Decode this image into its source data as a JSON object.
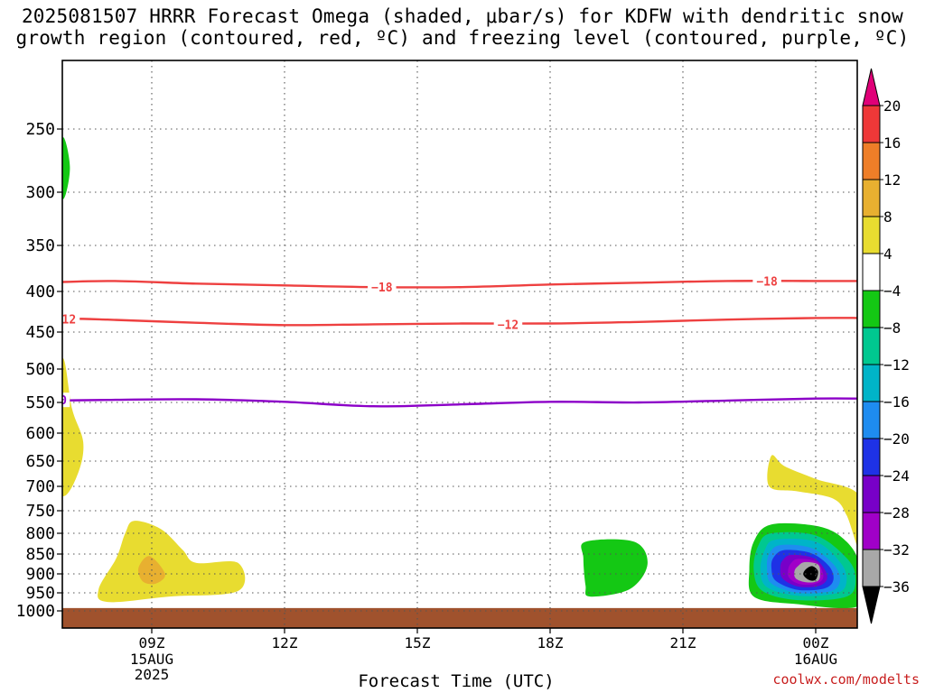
{
  "title": "2025081507 HRRR Forecast Omega (shaded, μbar/s) for KDFW with dendritic snow\ngrowth region (contoured, red, ºC) and freezing level (contoured, purple, ºC)",
  "credit": "coolwx.com/modelts",
  "chart_data": {
    "type": "time-height contour",
    "xlabel": "Forecast Time (UTC)",
    "ylabel": "",
    "x_range_hours": [
      6.0,
      24.95
    ],
    "y_range_hpa": [
      1025,
      175
    ],
    "y_ticks": [
      250,
      300,
      350,
      400,
      450,
      500,
      550,
      600,
      650,
      700,
      750,
      800,
      850,
      900,
      950,
      1000
    ],
    "y_scale": "log-pressure",
    "x_ticks": [
      {
        "hour": 9,
        "label": "09Z",
        "sub": [
          "15AUG",
          "2025"
        ]
      },
      {
        "hour": 12,
        "label": "12Z",
        "sub": []
      },
      {
        "hour": 15,
        "label": "15Z",
        "sub": []
      },
      {
        "hour": 18,
        "label": "18Z",
        "sub": []
      },
      {
        "hour": 21,
        "label": "21Z",
        "sub": []
      },
      {
        "hour": 24,
        "label": "00Z",
        "sub": [
          "16AUG"
        ]
      }
    ],
    "grid": true,
    "colorbar": {
      "labels": [
        "20",
        "16",
        "12",
        "8",
        "4",
        "−4",
        "−8",
        "−12",
        "−16",
        "−20",
        "−24",
        "−28",
        "−32",
        "−36"
      ],
      "colors": [
        "#e00078",
        "#ee3838",
        "#ee7e28",
        "#e8b030",
        "#e8dc30",
        "#ffffff",
        "#14c814",
        "#00c890",
        "#00b4c8",
        "#1e8cf0",
        "#1e32e6",
        "#7800c8",
        "#a000c8",
        "#a8a8a8",
        "#000000"
      ]
    },
    "contours": [
      {
        "name": "-18 °C",
        "color": "#ee4040",
        "label": "−18",
        "points": [
          [
            6,
            391
          ],
          [
            8,
            388
          ],
          [
            10,
            391
          ],
          [
            12,
            393
          ],
          [
            14,
            395
          ],
          [
            16,
            395
          ],
          [
            18,
            392
          ],
          [
            20,
            390
          ],
          [
            22,
            388
          ],
          [
            24,
            388
          ],
          [
            25,
            388
          ]
        ],
        "label_at": [
          [
            14.2,
            395
          ],
          [
            22.9,
            388
          ]
        ]
      },
      {
        "name": "-12 °C",
        "color": "#ee4040",
        "label": "−12",
        "points": [
          [
            6,
            436
          ],
          [
            7,
            433
          ],
          [
            8,
            434
          ],
          [
            10,
            438
          ],
          [
            12,
            441
          ],
          [
            14,
            440
          ],
          [
            16,
            439
          ],
          [
            18,
            439
          ],
          [
            20,
            437
          ],
          [
            22,
            434
          ],
          [
            24,
            432
          ],
          [
            25,
            432
          ]
        ],
        "label_at": [
          [
            7.05,
            433
          ],
          [
            17.05,
            440
          ]
        ]
      },
      {
        "name": "0 °C",
        "color": "#8c00c8",
        "label": "0",
        "points": [
          [
            6,
            548
          ],
          [
            8,
            546
          ],
          [
            10,
            545
          ],
          [
            12,
            549
          ],
          [
            14,
            556
          ],
          [
            16,
            553
          ],
          [
            18,
            549
          ],
          [
            20,
            550
          ],
          [
            22,
            547
          ],
          [
            24,
            544
          ],
          [
            25,
            544
          ]
        ],
        "label_at": [
          [
            7.0,
            546
          ]
        ]
      }
    ],
    "omega_regions": [
      {
        "value_bin": "-8 to -4",
        "color": "#14c814",
        "points": [
          [
            7.0,
            256
          ],
          [
            7.15,
            280
          ],
          [
            7.0,
            306
          ],
          [
            6.85,
            280
          ]
        ]
      },
      {
        "value_bin": "4 to 8",
        "color": "#e8dc30",
        "points": [
          [
            7.0,
            485
          ],
          [
            7.2,
            560
          ],
          [
            7.45,
            615
          ],
          [
            7.35,
            670
          ],
          [
            7.0,
            720
          ],
          [
            6.6,
            670
          ],
          [
            6.55,
            600
          ],
          [
            6.8,
            540
          ]
        ]
      },
      {
        "value_bin": "4 to 8",
        "color": "#e8dc30",
        "points": [
          [
            8.6,
            772
          ],
          [
            9.2,
            790
          ],
          [
            9.7,
            840
          ],
          [
            10.0,
            872
          ],
          [
            10.95,
            872
          ],
          [
            10.95,
            945
          ],
          [
            9.4,
            960
          ],
          [
            8.0,
            975
          ],
          [
            7.8,
            940
          ],
          [
            8.2,
            860
          ],
          [
            8.4,
            800
          ]
        ]
      },
      {
        "value_bin": "8 to 12",
        "color": "#e8b030",
        "points": [
          [
            8.95,
            855
          ],
          [
            9.3,
            900
          ],
          [
            9.1,
            925
          ],
          [
            8.8,
            920
          ],
          [
            8.7,
            885
          ]
        ]
      },
      {
        "value_bin": "-8 to -4",
        "color": "#14c814",
        "points": [
          [
            18.8,
            820
          ],
          [
            19.9,
            820
          ],
          [
            20.2,
            875
          ],
          [
            19.8,
            940
          ],
          [
            18.9,
            960
          ],
          [
            18.8,
            930
          ],
          [
            18.75,
            860
          ]
        ]
      },
      {
        "value_bin": "4 to 8",
        "color": "#e8dc30",
        "points": [
          [
            23.0,
            640
          ],
          [
            23.3,
            660
          ],
          [
            24.0,
            685
          ],
          [
            25.0,
            720
          ],
          [
            25.0,
            840
          ],
          [
            24.7,
            760
          ],
          [
            24.4,
            725
          ],
          [
            23.6,
            710
          ],
          [
            22.95,
            700
          ]
        ]
      },
      {
        "value_bin": "-8 to -4",
        "color": "#14c814",
        "points": [
          [
            23.0,
            780
          ],
          [
            24.1,
            785
          ],
          [
            24.7,
            820
          ],
          [
            25.0,
            880
          ],
          [
            25.0,
            985
          ],
          [
            23.5,
            980
          ],
          [
            22.6,
            960
          ],
          [
            22.5,
            890
          ],
          [
            22.6,
            820
          ]
        ]
      },
      {
        "value_bin": "-12 to -8",
        "color": "#00c890",
        "points": [
          [
            23.0,
            800
          ],
          [
            24.0,
            805
          ],
          [
            24.7,
            860
          ],
          [
            24.9,
            910
          ],
          [
            24.7,
            960
          ],
          [
            23.6,
            970
          ],
          [
            22.8,
            945
          ],
          [
            22.6,
            890
          ],
          [
            22.7,
            830
          ]
        ]
      },
      {
        "value_bin": "-16 to -12",
        "color": "#00b4c8",
        "points": [
          [
            23.1,
            815
          ],
          [
            24.0,
            820
          ],
          [
            24.55,
            870
          ],
          [
            24.7,
            915
          ],
          [
            24.5,
            950
          ],
          [
            23.6,
            958
          ],
          [
            22.9,
            935
          ],
          [
            22.75,
            890
          ],
          [
            22.85,
            840
          ]
        ]
      },
      {
        "value_bin": "-20 to -16",
        "color": "#1e8cf0",
        "points": [
          [
            23.2,
            828
          ],
          [
            23.9,
            835
          ],
          [
            24.4,
            875
          ],
          [
            24.55,
            915
          ],
          [
            24.35,
            945
          ],
          [
            23.6,
            950
          ],
          [
            23.0,
            925
          ],
          [
            22.9,
            885
          ],
          [
            22.95,
            850
          ]
        ]
      },
      {
        "value_bin": "-24 to -20",
        "color": "#1e32e6",
        "points": [
          [
            23.3,
            840
          ],
          [
            23.9,
            848
          ],
          [
            24.3,
            880
          ],
          [
            24.4,
            915
          ],
          [
            24.2,
            938
          ],
          [
            23.6,
            942
          ],
          [
            23.1,
            918
          ],
          [
            23.0,
            885
          ],
          [
            23.05,
            858
          ]
        ]
      },
      {
        "value_bin": "-28 to -24",
        "color": "#7800c8",
        "points": [
          [
            23.45,
            852
          ],
          [
            23.95,
            860
          ],
          [
            24.2,
            888
          ],
          [
            24.25,
            915
          ],
          [
            24.05,
            932
          ],
          [
            23.6,
            933
          ],
          [
            23.25,
            912
          ],
          [
            23.2,
            885
          ],
          [
            23.25,
            866
          ]
        ]
      },
      {
        "value_bin": "-32 to -28",
        "color": "#a000c8",
        "points": [
          [
            23.6,
            862
          ],
          [
            24.0,
            868
          ],
          [
            24.15,
            893
          ],
          [
            24.15,
            915
          ],
          [
            23.95,
            927
          ],
          [
            23.62,
            926
          ],
          [
            23.4,
            910
          ],
          [
            23.38,
            888
          ],
          [
            23.45,
            872
          ]
        ]
      },
      {
        "value_bin": "-36 to -32",
        "color": "#a8a8a8",
        "points": [
          [
            23.75,
            870
          ],
          [
            24.05,
            876
          ],
          [
            24.1,
            900
          ],
          [
            24.05,
            918
          ],
          [
            23.8,
            922
          ],
          [
            23.55,
            912
          ],
          [
            23.52,
            893
          ],
          [
            23.6,
            880
          ]
        ]
      },
      {
        "value_bin": "< -36",
        "color": "#000000",
        "points": [
          [
            23.92,
            880
          ],
          [
            24.05,
            893
          ],
          [
            24.0,
            915
          ],
          [
            23.85,
            916
          ],
          [
            23.72,
            902
          ],
          [
            23.78,
            888
          ]
        ]
      }
    ],
    "terrain": {
      "color": "#a0522d",
      "top_hpa": 992
    }
  }
}
